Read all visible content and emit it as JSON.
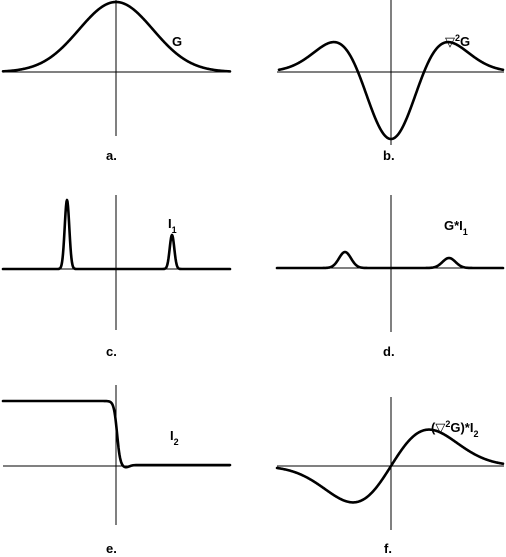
{
  "panels": [
    {
      "id": "a",
      "caption": "a.",
      "label": [
        {
          "t": "G"
        }
      ]
    },
    {
      "id": "b",
      "caption": "b.",
      "label": [
        {
          "t": "▽"
        },
        {
          "t": "2",
          "sup": true
        },
        {
          "t": "G"
        }
      ]
    },
    {
      "id": "c",
      "caption": "c.",
      "label": [
        {
          "t": "I"
        },
        {
          "t": "1",
          "sub": true
        }
      ]
    },
    {
      "id": "d",
      "caption": "d.",
      "label": [
        {
          "t": "G*I"
        },
        {
          "t": "1",
          "sub": true
        }
      ]
    },
    {
      "id": "e",
      "caption": "e.",
      "label": [
        {
          "t": "I"
        },
        {
          "t": "2",
          "sub": true
        }
      ]
    },
    {
      "id": "f",
      "caption": "f.",
      "label": [
        {
          "t": "(▽"
        },
        {
          "t": "2",
          "sup": true
        },
        {
          "t": "G)*I"
        },
        {
          "t": "2",
          "sub": true
        }
      ]
    }
  ]
}
